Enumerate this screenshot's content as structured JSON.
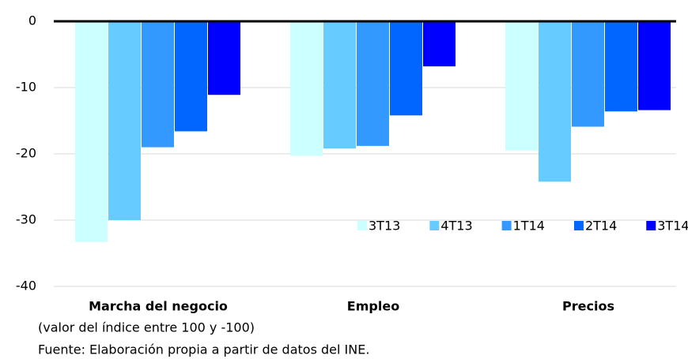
{
  "chart_data": {
    "type": "bar",
    "categories": [
      "Marcha del negocio",
      "Empleo",
      "Precios"
    ],
    "series": [
      {
        "name": "3T13",
        "color": "#ccffff",
        "values": [
          -33.3,
          -20.3,
          -19.5
        ]
      },
      {
        "name": "4T13",
        "color": "#66ccff",
        "values": [
          -30.0,
          -19.2,
          -24.2
        ]
      },
      {
        "name": "1T14",
        "color": "#3399ff",
        "values": [
          -19.0,
          -18.8,
          -15.9
        ]
      },
      {
        "name": "2T14",
        "color": "#0066ff",
        "values": [
          -16.6,
          -14.2,
          -13.6
        ]
      },
      {
        "name": "3T14",
        "color": "#0000ff",
        "values": [
          -11.1,
          -6.8,
          -13.4
        ]
      }
    ],
    "ylim": [
      -40,
      0
    ],
    "yticks": [
      0,
      -10,
      -20,
      -30,
      -40
    ],
    "grid": true,
    "legend": "lower-right",
    "notes": [
      "(valor del índice entre 100 y -100)",
      "Fuente: Elaboración propia a partir de datos del INE."
    ]
  }
}
